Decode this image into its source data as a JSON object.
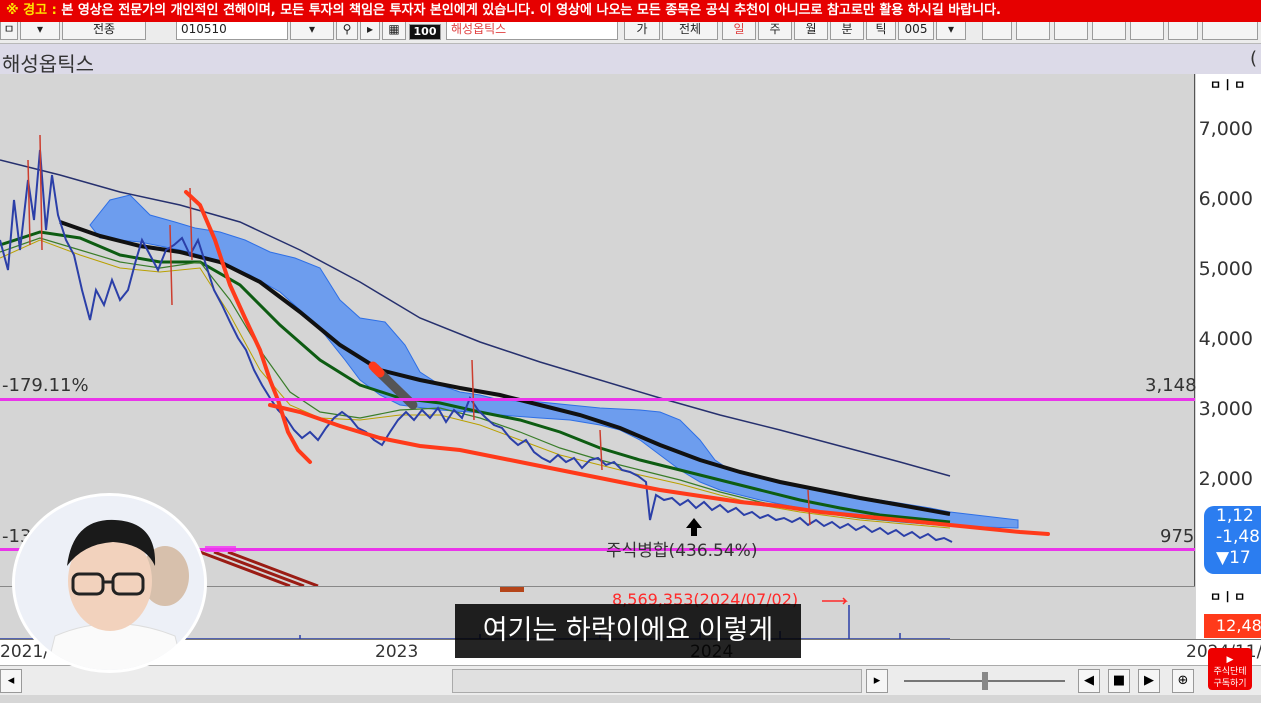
{
  "warning": {
    "icon_text": "※ 경고 :",
    "text": "본 영상은 전문가의 개인적인 견해이며, 모든 투자의 책임은 투자자 본인에게 있습니다. 이 영상에 나오는 모든 종목은 공식 추천이 아니므로 참고로만 활용 하시길 바랍니다."
  },
  "toolbar": {
    "mode_select": "전종",
    "code_input": "010510",
    "badge_100": "100",
    "name_input": "해성옵틱스",
    "btn_ga": "가",
    "btn_all": "전체",
    "btn_day": "일",
    "btn_week": "주",
    "btn_month": "월",
    "btn_min": "분",
    "btn_tick": "틱",
    "period_value": "005"
  },
  "stock": {
    "name": "해성옵틱스",
    "paren": "("
  },
  "price_axis": {
    "icons": "ㅁㅣㅁ",
    "ticks": [
      "7,000",
      "6,000",
      "5,000",
      "4,000",
      "3,000",
      "2,000"
    ],
    "current_price": "1,12",
    "change": "-1,48",
    "change_pct": "▼17"
  },
  "levels": {
    "upper_pct": "-179.11%",
    "upper_value": "3,148",
    "lower_pct": "-13",
    "lower_value": "975"
  },
  "annotation": "주식병합(436.54%)",
  "volume": {
    "max_label": "8,569,353(2024/07/02)",
    "axis_icons": "ㅁㅣㅁ",
    "current": "12,48"
  },
  "x_axis": {
    "labels": [
      "2021/",
      "2023",
      "2024",
      "2024/11/"
    ]
  },
  "subtitle": "여기는 하락이에요 이렇게",
  "youtube": {
    "line1": "주식단테",
    "line2": "구독하기"
  },
  "colors": {
    "warning_bg": "#e60000",
    "level_line": "#ea34ea",
    "trend_line": "#ff3a1a",
    "cloud": "#4f8cf5",
    "ma_long": "#111111",
    "ma_mid": "#0d5c12"
  }
}
